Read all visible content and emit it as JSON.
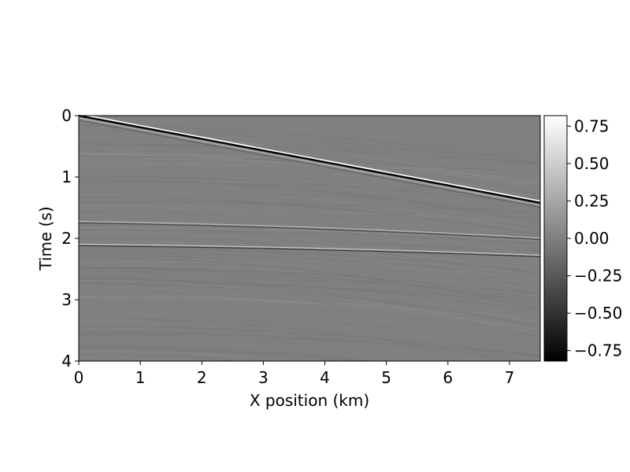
{
  "chart_data": {
    "type": "heatmap",
    "title": "",
    "xlabel": "X position (km)",
    "ylabel": "Time (s)",
    "xlim": [
      0,
      7.5
    ],
    "ylim": [
      4,
      0
    ],
    "x_ticks": [
      "0",
      "1",
      "2",
      "3",
      "4",
      "5",
      "6",
      "7"
    ],
    "y_ticks": [
      "0",
      "1",
      "2",
      "3",
      "4"
    ],
    "colormap": "gray",
    "color_range": [
      -0.82,
      0.82
    ],
    "colorbar_ticks": [
      "0.75",
      "0.50",
      "0.25",
      "0.00",
      "−0.25",
      "−0.50",
      "−0.75"
    ],
    "grid": false,
    "events": [
      {
        "name": "direct_arrival",
        "x": [
          0,
          7.5
        ],
        "t": [
          0.0,
          1.42
        ],
        "shape": "linear",
        "amplitude": 0.8
      },
      {
        "name": "reflection_1",
        "t0": 1.75,
        "t_end": 2.02,
        "shape": "hyperbolic",
        "amplitude": 0.35
      },
      {
        "name": "reflection_2",
        "t0": 2.12,
        "t_end": 2.3,
        "shape": "hyperbolic",
        "amplitude": 0.45
      }
    ]
  }
}
